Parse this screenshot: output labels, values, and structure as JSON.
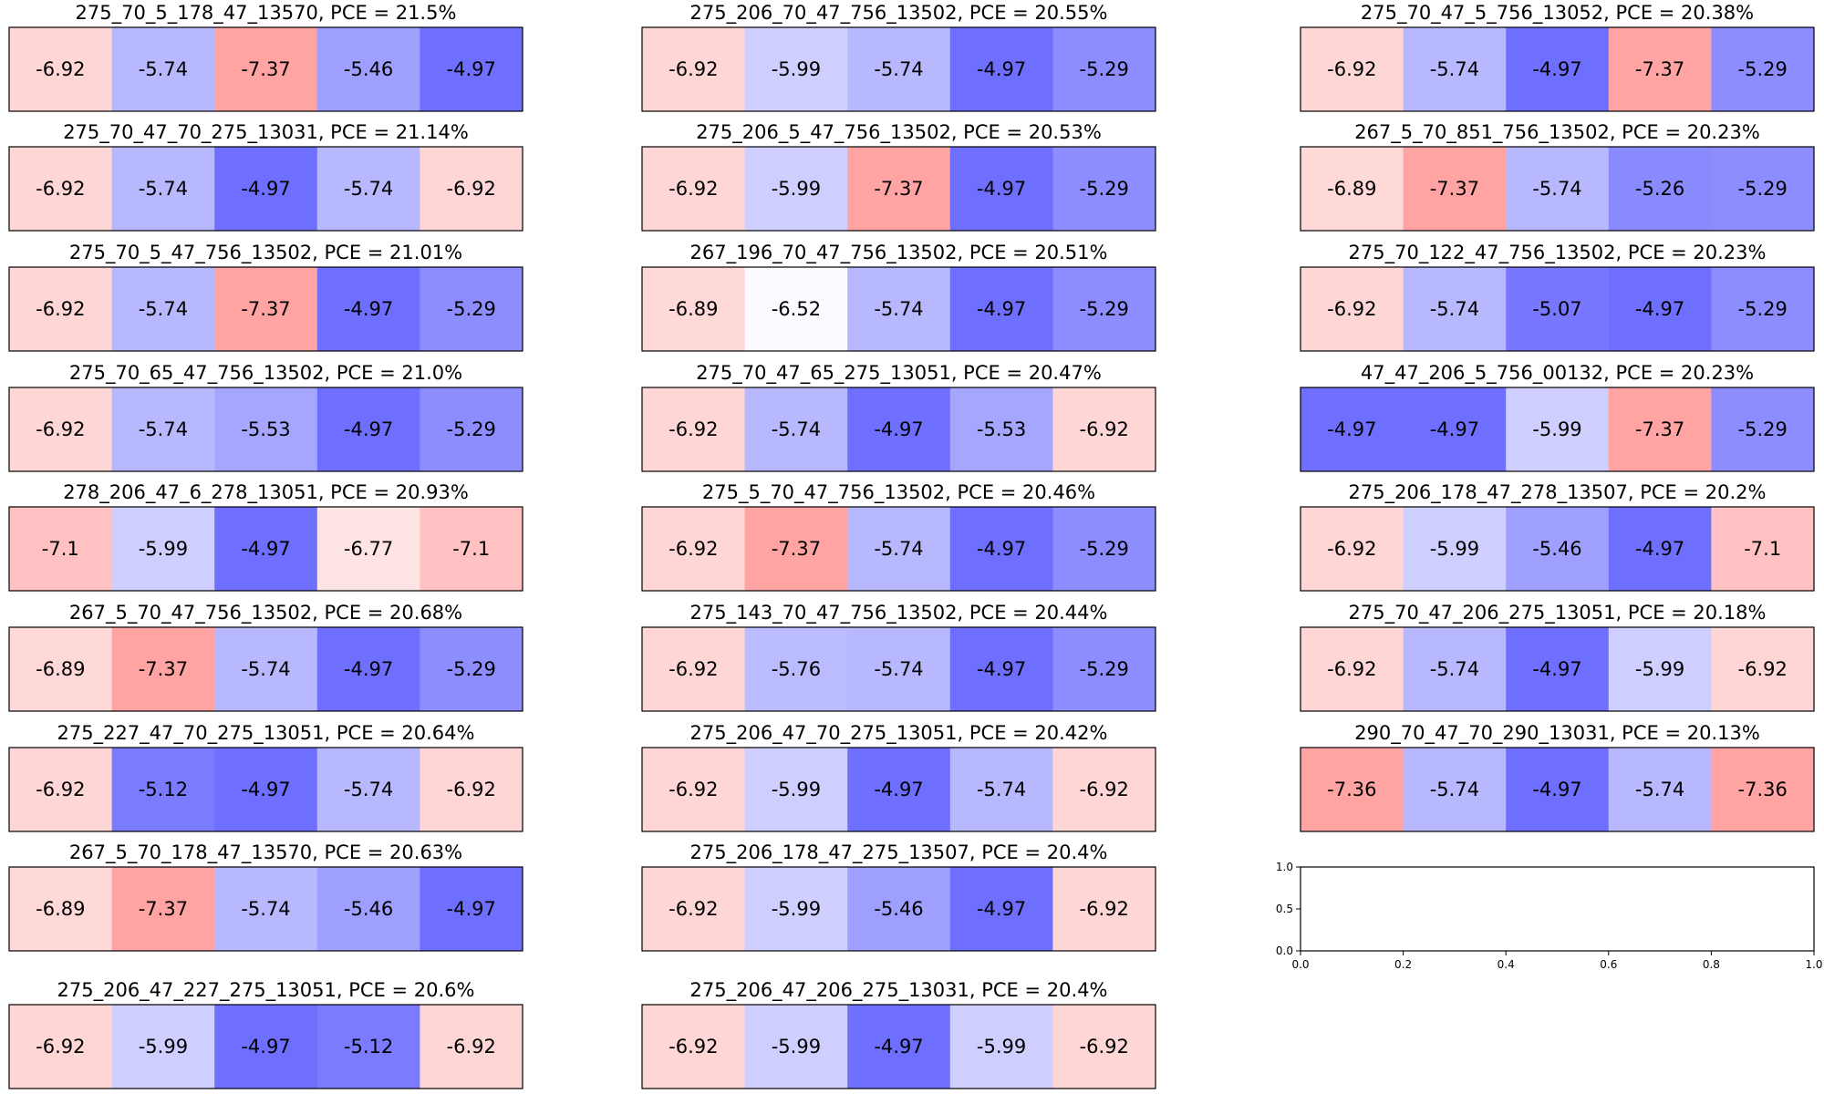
{
  "chart_data": [
    {
      "type": "heatmap",
      "title": "275_70_5_178_47_13570, PCE = 21.5%",
      "values": [
        "-6.92",
        "-5.74",
        "-7.37",
        "-5.46",
        "-4.97"
      ]
    },
    {
      "type": "heatmap",
      "title": "275_206_70_47_756_13502, PCE = 20.55%",
      "values": [
        "-6.92",
        "-5.99",
        "-5.74",
        "-4.97",
        "-5.29"
      ]
    },
    {
      "type": "heatmap",
      "title": "275_70_47_5_756_13052, PCE = 20.38%",
      "values": [
        "-6.92",
        "-5.74",
        "-4.97",
        "-7.37",
        "-5.29"
      ]
    },
    {
      "type": "heatmap",
      "title": "275_70_47_70_275_13031, PCE = 21.14%",
      "values": [
        "-6.92",
        "-5.74",
        "-4.97",
        "-5.74",
        "-6.92"
      ]
    },
    {
      "type": "heatmap",
      "title": "275_206_5_47_756_13502, PCE = 20.53%",
      "values": [
        "-6.92",
        "-5.99",
        "-7.37",
        "-4.97",
        "-5.29"
      ]
    },
    {
      "type": "heatmap",
      "title": "267_5_70_851_756_13502, PCE = 20.23%",
      "values": [
        "-6.89",
        "-7.37",
        "-5.74",
        "-5.26",
        "-5.29"
      ]
    },
    {
      "type": "heatmap",
      "title": "275_70_5_47_756_13502, PCE = 21.01%",
      "values": [
        "-6.92",
        "-5.74",
        "-7.37",
        "-4.97",
        "-5.29"
      ]
    },
    {
      "type": "heatmap",
      "title": "267_196_70_47_756_13502, PCE = 20.51%",
      "values": [
        "-6.89",
        "-6.52",
        "-5.74",
        "-4.97",
        "-5.29"
      ]
    },
    {
      "type": "heatmap",
      "title": "275_70_122_47_756_13502, PCE = 20.23%",
      "values": [
        "-6.92",
        "-5.74",
        "-5.07",
        "-4.97",
        "-5.29"
      ]
    },
    {
      "type": "heatmap",
      "title": "275_70_65_47_756_13502, PCE = 21.0%",
      "values": [
        "-6.92",
        "-5.74",
        "-5.53",
        "-4.97",
        "-5.29"
      ]
    },
    {
      "type": "heatmap",
      "title": "275_70_47_65_275_13051, PCE = 20.47%",
      "values": [
        "-6.92",
        "-5.74",
        "-4.97",
        "-5.53",
        "-6.92"
      ]
    },
    {
      "type": "heatmap",
      "title": "47_47_206_5_756_00132, PCE = 20.23%",
      "values": [
        "-4.97",
        "-4.97",
        "-5.99",
        "-7.37",
        "-5.29"
      ]
    },
    {
      "type": "heatmap",
      "title": "278_206_47_6_278_13051, PCE = 20.93%",
      "values": [
        "-7.1",
        "-5.99",
        "-4.97",
        "-6.77",
        "-7.1"
      ]
    },
    {
      "type": "heatmap",
      "title": "275_5_70_47_756_13502, PCE = 20.46%",
      "values": [
        "-6.92",
        "-7.37",
        "-5.74",
        "-4.97",
        "-5.29"
      ]
    },
    {
      "type": "heatmap",
      "title": "275_206_178_47_278_13507, PCE = 20.2%",
      "values": [
        "-6.92",
        "-5.99",
        "-5.46",
        "-4.97",
        "-7.1"
      ]
    },
    {
      "type": "heatmap",
      "title": "267_5_70_47_756_13502, PCE = 20.68%",
      "values": [
        "-6.89",
        "-7.37",
        "-5.74",
        "-4.97",
        "-5.29"
      ]
    },
    {
      "type": "heatmap",
      "title": "275_143_70_47_756_13502, PCE = 20.44%",
      "values": [
        "-6.92",
        "-5.76",
        "-5.74",
        "-4.97",
        "-5.29"
      ]
    },
    {
      "type": "heatmap",
      "title": "275_70_47_206_275_13051, PCE = 20.18%",
      "values": [
        "-6.92",
        "-5.74",
        "-4.97",
        "-5.99",
        "-6.92"
      ]
    },
    {
      "type": "heatmap",
      "title": "275_227_47_70_275_13051, PCE = 20.64%",
      "values": [
        "-6.92",
        "-5.12",
        "-4.97",
        "-5.74",
        "-6.92"
      ]
    },
    {
      "type": "heatmap",
      "title": "275_206_47_70_275_13051, PCE = 20.42%",
      "values": [
        "-6.92",
        "-5.99",
        "-4.97",
        "-5.74",
        "-6.92"
      ]
    },
    {
      "type": "heatmap",
      "title": "290_70_47_70_290_13031, PCE = 20.13%",
      "values": [
        "-7.36",
        "-5.74",
        "-4.97",
        "-5.74",
        "-7.36"
      ]
    },
    {
      "type": "heatmap",
      "title": "267_5_70_178_47_13570, PCE = 20.63%",
      "values": [
        "-6.89",
        "-7.37",
        "-5.74",
        "-5.46",
        "-4.97"
      ]
    },
    {
      "type": "heatmap",
      "title": "275_206_178_47_275_13507, PCE = 20.4%",
      "values": [
        "-6.92",
        "-5.99",
        "-5.46",
        "-4.97",
        "-6.92"
      ]
    },
    {
      "type": "line",
      "title": "",
      "series": [],
      "xlim": [
        0,
        1
      ],
      "ylim": [
        0,
        1
      ],
      "xticks": [
        "0.0",
        "0.2",
        "0.4",
        "0.6",
        "0.8",
        "1.0"
      ],
      "yticks": [
        "0.0",
        "0.5",
        "1.0"
      ]
    },
    {
      "type": "heatmap",
      "title": "275_206_47_227_275_13051, PCE = 20.6%",
      "values": [
        "-6.92",
        "-5.99",
        "-4.97",
        "-5.12",
        "-6.92"
      ]
    },
    {
      "type": "heatmap",
      "title": "275_206_47_206_275_13031, PCE = 20.4%",
      "values": [
        "-6.92",
        "-5.99",
        "-4.97",
        "-5.99",
        "-6.92"
      ]
    }
  ],
  "colors": {
    "-7.37": "#ffa3a3",
    "-7.36": "#ffa3a3",
    "-7.1": "#ffc1c1",
    "-6.92": "#ffd6d6",
    "-6.89": "#ffd8d8",
    "-6.77": "#ffe4e4",
    "-6.52": "#fbfbff",
    "-5.99": "#ceceff",
    "-5.76": "#bbbbff",
    "-5.74": "#b8b8ff",
    "-5.53": "#a6a6ff",
    "-5.46": "#9f9fff",
    "-5.29": "#8d8dff",
    "-5.26": "#8a8aff",
    "-5.12": "#7b7bff",
    "-5.07": "#7777ff",
    "-4.97": "#6f6fff"
  }
}
